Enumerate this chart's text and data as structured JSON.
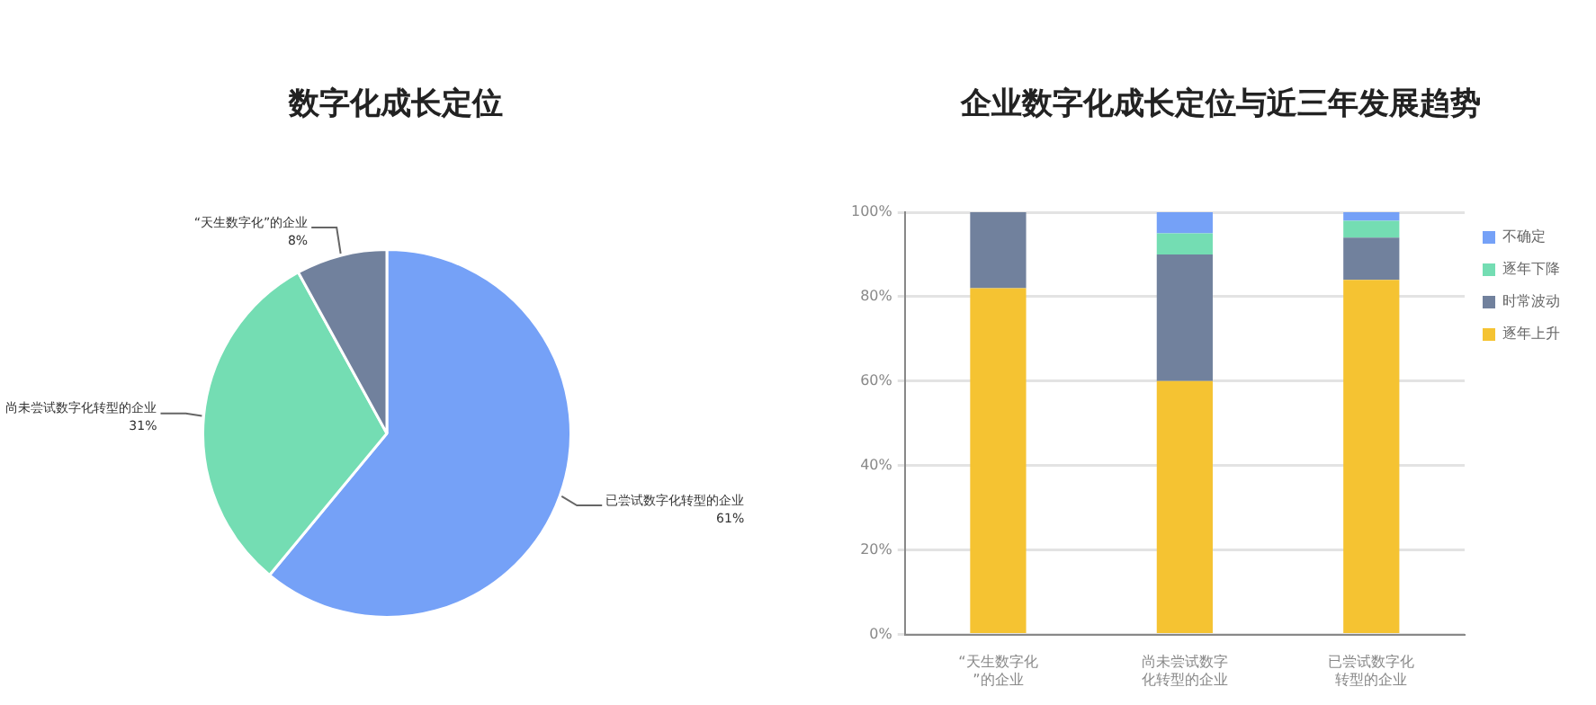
{
  "chart_data": [
    {
      "type": "pie",
      "title": "数字化成长定位",
      "categories": [
        "已尝试数字化转型的企业",
        "尚未尝试数字化转型的企业",
        "“天生数字化”的企业"
      ],
      "values": [
        61,
        31,
        8
      ],
      "colors": [
        "#75a1f7",
        "#74ddb3",
        "#71819d"
      ],
      "value_labels": [
        "61%",
        "31%",
        "8%"
      ],
      "legend": false
    },
    {
      "type": "bar",
      "title": "企业数字化成长定位与近三年发展趋势",
      "stacked": true,
      "categories": [
        "“天生数字化”的企业",
        "尚未尝试数字化转型的企业",
        "已尝试数字化转型的企业"
      ],
      "series": [
        {
          "name": "逐年上升",
          "color": "#f5c332",
          "values": [
            82,
            60,
            84
          ]
        },
        {
          "name": "时常波动",
          "color": "#71819d",
          "values": [
            18,
            30,
            10
          ]
        },
        {
          "name": "逐年下降",
          "color": "#74ddb3",
          "values": [
            0,
            5,
            4
          ]
        },
        {
          "name": "不确定",
          "color": "#75a1f7",
          "values": [
            0,
            5,
            2
          ]
        }
      ],
      "ylim": [
        0,
        100
      ],
      "yticks": [
        {
          "value": 0,
          "label": "0%"
        },
        {
          "value": 20,
          "label": "20%"
        },
        {
          "value": 40,
          "label": "40%"
        },
        {
          "value": 60,
          "label": "60%"
        },
        {
          "value": 80,
          "label": "80%"
        },
        {
          "value": 100,
          "label": "100%"
        }
      ],
      "grid": "y",
      "legend": "top right"
    }
  ]
}
